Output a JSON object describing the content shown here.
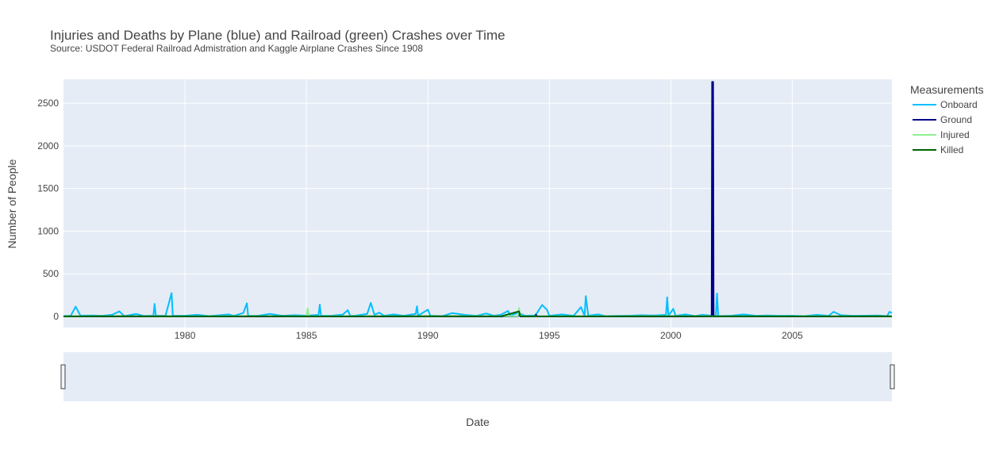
{
  "chart_data": {
    "type": "line",
    "title": "Injuries and Deaths by Plane (blue) and Railroad (green) Crashes over Time",
    "subtitle": "Source: USDOT Federal Railroad Admistration and Kaggle Airplane Crashes Since 1908",
    "xlabel": "Date",
    "ylabel": "Number of People",
    "xlim": [
      1975.0,
      2009.1
    ],
    "ylim": [
      -130,
      2780
    ],
    "x_ticks": [
      1980,
      1985,
      1990,
      1995,
      2000,
      2005
    ],
    "y_ticks": [
      0,
      500,
      1000,
      1500,
      2000,
      2500
    ],
    "grid": true,
    "range_slider": true,
    "legend": {
      "title": "Measurements",
      "position": "right"
    },
    "series": [
      {
        "name": "Onboard",
        "color": "#00bfff",
        "points": [
          [
            1975.0,
            5
          ],
          [
            1975.3,
            10
          ],
          [
            1975.5,
            115
          ],
          [
            1975.7,
            10
          ],
          [
            1976.2,
            12
          ],
          [
            1976.6,
            8
          ],
          [
            1977.0,
            20
          ],
          [
            1977.3,
            60
          ],
          [
            1977.5,
            5
          ],
          [
            1978.0,
            30
          ],
          [
            1978.3,
            6
          ],
          [
            1978.7,
            10
          ],
          [
            1978.75,
            148
          ],
          [
            1978.8,
            8
          ],
          [
            1979.2,
            10
          ],
          [
            1979.45,
            275
          ],
          [
            1979.5,
            10
          ],
          [
            1980.0,
            8
          ],
          [
            1980.5,
            20
          ],
          [
            1981.0,
            5
          ],
          [
            1981.3,
            12
          ],
          [
            1981.8,
            25
          ],
          [
            1982.0,
            8
          ],
          [
            1982.4,
            40
          ],
          [
            1982.55,
            155
          ],
          [
            1982.6,
            10
          ],
          [
            1983.0,
            8
          ],
          [
            1983.5,
            30
          ],
          [
            1984.0,
            8
          ],
          [
            1984.5,
            15
          ],
          [
            1985.0,
            10
          ],
          [
            1985.5,
            20
          ],
          [
            1985.55,
            140
          ],
          [
            1985.6,
            10
          ],
          [
            1986.0,
            8
          ],
          [
            1986.5,
            22
          ],
          [
            1986.7,
            75
          ],
          [
            1986.8,
            8
          ],
          [
            1987.0,
            10
          ],
          [
            1987.5,
            30
          ],
          [
            1987.65,
            160
          ],
          [
            1987.8,
            20
          ],
          [
            1988.0,
            45
          ],
          [
            1988.2,
            8
          ],
          [
            1988.6,
            25
          ],
          [
            1989.0,
            8
          ],
          [
            1989.5,
            30
          ],
          [
            1989.55,
            120
          ],
          [
            1989.6,
            10
          ],
          [
            1990.0,
            80
          ],
          [
            1990.1,
            8
          ],
          [
            1990.6,
            5
          ],
          [
            1991.0,
            40
          ],
          [
            1991.5,
            20
          ],
          [
            1992.0,
            8
          ],
          [
            1992.4,
            35
          ],
          [
            1992.7,
            10
          ],
          [
            1993.0,
            20
          ],
          [
            1993.3,
            65
          ],
          [
            1993.4,
            8
          ],
          [
            1993.7,
            45
          ],
          [
            1994.0,
            8
          ],
          [
            1994.4,
            12
          ],
          [
            1994.5,
            45
          ],
          [
            1994.7,
            135
          ],
          [
            1994.9,
            80
          ],
          [
            1995.0,
            8
          ],
          [
            1995.5,
            25
          ],
          [
            1996.0,
            8
          ],
          [
            1996.3,
            110
          ],
          [
            1996.45,
            8
          ],
          [
            1996.5,
            240
          ],
          [
            1996.6,
            10
          ],
          [
            1997.0,
            25
          ],
          [
            1997.3,
            5
          ],
          [
            1997.8,
            8
          ],
          [
            1998.3,
            10
          ],
          [
            1998.8,
            15
          ],
          [
            1999.3,
            12
          ],
          [
            1999.8,
            20
          ],
          [
            1999.85,
            225
          ],
          [
            1999.9,
            8
          ],
          [
            2000.1,
            90
          ],
          [
            2000.2,
            8
          ],
          [
            2000.6,
            25
          ],
          [
            2001.0,
            5
          ],
          [
            2001.3,
            20
          ],
          [
            2001.7,
            8
          ],
          [
            2001.85,
            8
          ],
          [
            2001.9,
            270
          ],
          [
            2001.95,
            5
          ],
          [
            2002.5,
            10
          ],
          [
            2003.0,
            25
          ],
          [
            2003.5,
            8
          ],
          [
            2004.0,
            12
          ],
          [
            2004.5,
            8
          ],
          [
            2005.0,
            10
          ],
          [
            2005.5,
            5
          ],
          [
            2006.0,
            20
          ],
          [
            2006.5,
            8
          ],
          [
            2006.7,
            55
          ],
          [
            2007.0,
            15
          ],
          [
            2007.5,
            8
          ],
          [
            2008.0,
            10
          ],
          [
            2008.5,
            12
          ],
          [
            2008.9,
            5
          ],
          [
            2009.0,
            55
          ],
          [
            2009.1,
            40
          ]
        ]
      },
      {
        "name": "Ground",
        "color": "#00008b",
        "points": [
          [
            1975.0,
            0
          ],
          [
            1985.0,
            0
          ],
          [
            1993.7,
            0
          ],
          [
            1993.75,
            25
          ],
          [
            1993.8,
            0
          ],
          [
            1994.4,
            0
          ],
          [
            1994.45,
            20
          ],
          [
            1994.5,
            0
          ],
          [
            2001.68,
            0
          ],
          [
            2001.7,
            2750
          ],
          [
            2001.72,
            5
          ],
          [
            2001.74,
            2750
          ],
          [
            2001.76,
            0
          ],
          [
            2009.1,
            0
          ]
        ]
      },
      {
        "name": "Injured",
        "color": "#90ee90",
        "points": [
          [
            1975.0,
            2
          ],
          [
            1977.0,
            4
          ],
          [
            1980.0,
            2
          ],
          [
            1983.0,
            5
          ],
          [
            1984.5,
            2
          ],
          [
            1985.0,
            5
          ],
          [
            1985.05,
            95
          ],
          [
            1985.1,
            3
          ],
          [
            1988.0,
            5
          ],
          [
            1990.0,
            3
          ],
          [
            1992.0,
            5
          ],
          [
            1993.7,
            3
          ],
          [
            1993.75,
            100
          ],
          [
            1993.8,
            4
          ],
          [
            1996.0,
            3
          ],
          [
            2000.0,
            5
          ],
          [
            2003.0,
            3
          ],
          [
            2006.0,
            4
          ],
          [
            2009.1,
            2
          ]
        ]
      },
      {
        "name": "Killed",
        "color": "#006400",
        "points": [
          [
            1975.0,
            1
          ],
          [
            1978.0,
            3
          ],
          [
            1981.0,
            1
          ],
          [
            1984.0,
            2
          ],
          [
            1987.0,
            1
          ],
          [
            1990.0,
            3
          ],
          [
            1993.0,
            1
          ],
          [
            1993.75,
            60
          ],
          [
            1993.8,
            2
          ],
          [
            1997.0,
            1
          ],
          [
            2001.0,
            2
          ],
          [
            2005.0,
            1
          ],
          [
            2009.1,
            2
          ]
        ]
      }
    ]
  }
}
